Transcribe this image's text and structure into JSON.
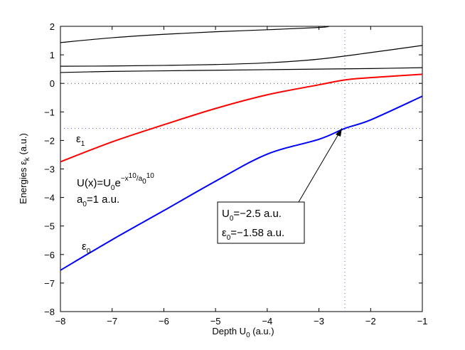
{
  "chart_data": {
    "type": "line",
    "xlabel": "Depth U",
    "xlabel_sub": "0",
    "xlabel_unit": " (a.u.)",
    "ylabel": "Energies ε",
    "ylabel_sub": "k",
    "ylabel_unit": " (a.u.)",
    "xlim": [
      -8,
      -1
    ],
    "ylim": [
      -8,
      2
    ],
    "xticks": [
      -8,
      -7,
      -6,
      -5,
      -4,
      -3,
      -2,
      -1
    ],
    "yticks": [
      -8,
      -7,
      -6,
      -5,
      -4,
      -3,
      -2,
      -1,
      0,
      1,
      2
    ],
    "tick_labels_x": [
      "−8",
      "−7",
      "−6",
      "−5",
      "−4",
      "−3",
      "−2",
      "−1"
    ],
    "tick_labels_y": [
      "−8",
      "−7",
      "−6",
      "−5",
      "−4",
      "−3",
      "−2",
      "−1",
      "0",
      "1",
      "2"
    ],
    "grid": false,
    "colors": {
      "epsilon0": "#0000ff",
      "epsilon1": "#ff0000",
      "other": "#000000",
      "guide": "#6666cc",
      "zero_line": "#444444"
    },
    "series": [
      {
        "name": "ε0",
        "color": "#0000ff",
        "x": [
          -8,
          -7,
          -6,
          -5,
          -4,
          -3,
          -2.5,
          -2,
          -1
        ],
        "y": [
          -6.55,
          -5.48,
          -4.46,
          -3.43,
          -2.48,
          -1.96,
          -1.58,
          -1.28,
          -0.45
        ]
      },
      {
        "name": "ε1",
        "color": "#ff0000",
        "x": [
          -8,
          -7,
          -6,
          -5,
          -4,
          -3,
          -2.5,
          -2,
          -1
        ],
        "y": [
          -2.75,
          -2.05,
          -1.45,
          -0.88,
          -0.4,
          -0.05,
          0.12,
          0.2,
          0.32
        ]
      },
      {
        "color": "#000000",
        "x": [
          -8,
          -7,
          -6,
          -5,
          -4,
          -3,
          -2,
          -1
        ],
        "y": [
          0.38,
          0.42,
          0.44,
          0.46,
          0.48,
          0.5,
          0.52,
          0.55
        ]
      },
      {
        "color": "#000000",
        "x": [
          -8,
          -7,
          -6,
          -5,
          -4,
          -3,
          -2,
          -1
        ],
        "y": [
          0.6,
          0.61,
          0.63,
          0.66,
          0.72,
          0.85,
          1.08,
          1.33
        ]
      },
      {
        "color": "#000000",
        "x": [
          -8,
          -7,
          -6,
          -5,
          -4,
          -3,
          -2.8
        ],
        "y": [
          1.43,
          1.6,
          1.72,
          1.81,
          1.88,
          1.96,
          2.0
        ]
      }
    ],
    "guides": {
      "x": -2.5,
      "y": -1.58,
      "zero": 0
    },
    "annotations": {
      "eps1": {
        "main": "ε",
        "sub": "1"
      },
      "eps0": {
        "main": "ε",
        "sub": "0"
      },
      "formula_line1": {
        "a": "U(x)=U",
        "b": "0",
        "c": "e",
        "d": "−x",
        "e": "10",
        "f": "/a",
        "g": "0",
        "h": "10"
      },
      "formula_line2": {
        "a": "a",
        "b": "0",
        "c": "=1 a.u."
      },
      "box_line1": {
        "a": "U",
        "b": "0",
        "c": "=−2.5 a.u."
      },
      "box_line2": {
        "a": "ε",
        "b": "0",
        "c": "=−1.58 a.u."
      }
    }
  }
}
